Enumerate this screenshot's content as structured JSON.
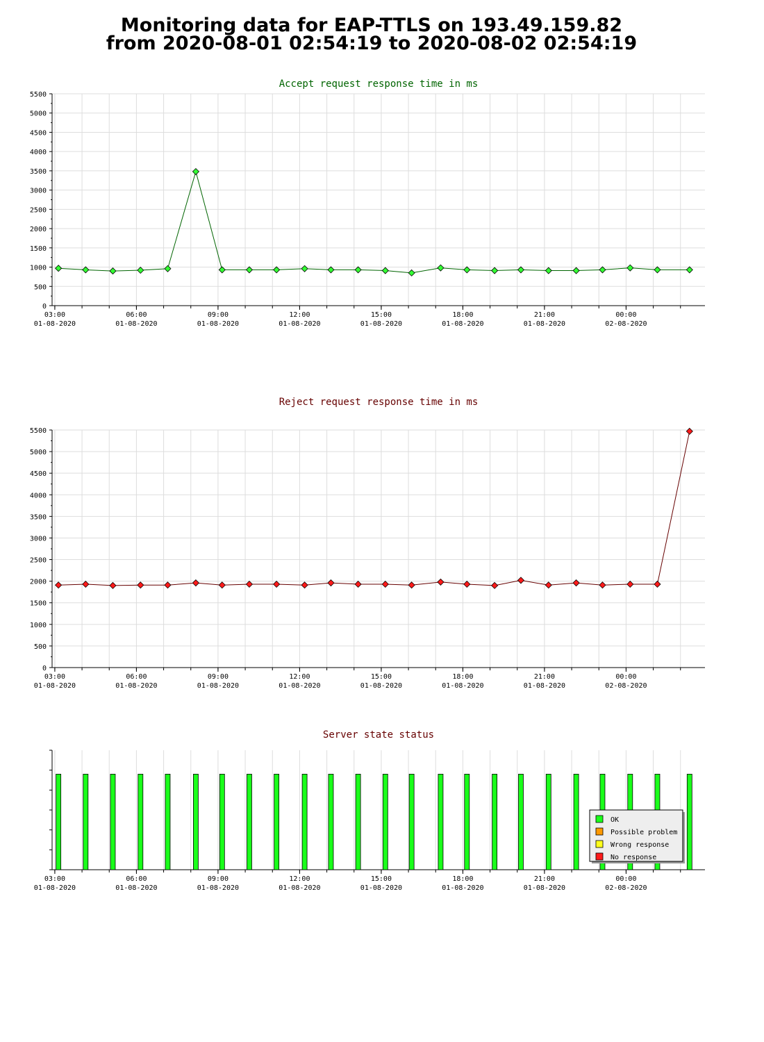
{
  "page": {
    "title_line1": "Monitoring data for EAP-TTLS on 193.49.159.82",
    "title_line2": "from 2020-08-01 02:54:19 to 2020-08-02 02:54:19"
  },
  "chart_data": [
    {
      "type": "line",
      "title": "Accept request response time in ms",
      "title_color": "#006400",
      "line_color": "#006400",
      "marker_color": "#33ff33",
      "ylim": [
        0,
        5500
      ],
      "yticks": [
        0,
        500,
        1000,
        1500,
        2000,
        2500,
        3000,
        3500,
        4000,
        4500,
        5000,
        5500
      ],
      "x_start": "2020-08-01 02:54",
      "x_end": "2020-08-02 02:54",
      "x_ticks": [
        {
          "time": "03:00",
          "date": "01-08-2020"
        },
        {
          "time": "06:00",
          "date": "01-08-2020"
        },
        {
          "time": "09:00",
          "date": "01-08-2020"
        },
        {
          "time": "12:00",
          "date": "01-08-2020"
        },
        {
          "time": "15:00",
          "date": "01-08-2020"
        },
        {
          "time": "18:00",
          "date": "01-08-2020"
        },
        {
          "time": "21:00",
          "date": "01-08-2020"
        },
        {
          "time": "00:00",
          "date": "02-08-2020"
        }
      ],
      "grid": true,
      "x": [
        "03:08",
        "04:08",
        "05:08",
        "06:09",
        "07:09",
        "08:11",
        "09:09",
        "10:09",
        "11:09",
        "12:11",
        "13:09",
        "14:09",
        "15:09",
        "16:07",
        "17:11",
        "18:09",
        "19:10",
        "20:08",
        "21:09",
        "22:10",
        "23:08",
        "00:09",
        "01:09",
        "02:20"
      ],
      "values": [
        970,
        930,
        900,
        920,
        960,
        3480,
        930,
        930,
        930,
        960,
        930,
        930,
        910,
        850,
        980,
        930,
        910,
        930,
        910,
        910,
        930,
        980,
        930,
        930
      ]
    },
    {
      "type": "line",
      "title": "Reject request response time in ms",
      "title_color": "#660000",
      "line_color": "#660000",
      "marker_color": "#ff1a1a",
      "ylim": [
        0,
        5500
      ],
      "yticks": [
        0,
        500,
        1000,
        1500,
        2000,
        2500,
        3000,
        3500,
        4000,
        4500,
        5000,
        5500
      ],
      "x_start": "2020-08-01 02:54",
      "x_end": "2020-08-02 02:54",
      "x_ticks": [
        {
          "time": "03:00",
          "date": "01-08-2020"
        },
        {
          "time": "06:00",
          "date": "01-08-2020"
        },
        {
          "time": "09:00",
          "date": "01-08-2020"
        },
        {
          "time": "12:00",
          "date": "01-08-2020"
        },
        {
          "time": "15:00",
          "date": "01-08-2020"
        },
        {
          "time": "18:00",
          "date": "01-08-2020"
        },
        {
          "time": "21:00",
          "date": "01-08-2020"
        },
        {
          "time": "00:00",
          "date": "02-08-2020"
        }
      ],
      "grid": true,
      "x": [
        "03:08",
        "04:08",
        "05:08",
        "06:09",
        "07:09",
        "08:11",
        "09:09",
        "10:09",
        "11:09",
        "12:11",
        "13:09",
        "14:09",
        "15:09",
        "16:07",
        "17:11",
        "18:09",
        "19:10",
        "20:08",
        "21:09",
        "22:10",
        "23:08",
        "00:09",
        "01:09",
        "02:20"
      ],
      "values": [
        1910,
        1930,
        1900,
        1910,
        1910,
        1960,
        1910,
        1930,
        1930,
        1910,
        1960,
        1930,
        1930,
        1910,
        1980,
        1930,
        1900,
        2020,
        1910,
        1960,
        1910,
        1930,
        1930,
        5470
      ]
    },
    {
      "type": "bar",
      "title": "Server state status",
      "title_color": "#660000",
      "x_start": "2020-08-01 02:54",
      "x_end": "2020-08-02 02:54",
      "x_ticks": [
        {
          "time": "03:00",
          "date": "01-08-2020"
        },
        {
          "time": "06:00",
          "date": "01-08-2020"
        },
        {
          "time": "09:00",
          "date": "01-08-2020"
        },
        {
          "time": "12:00",
          "date": "01-08-2020"
        },
        {
          "time": "15:00",
          "date": "01-08-2020"
        },
        {
          "time": "18:00",
          "date": "01-08-2020"
        },
        {
          "time": "21:00",
          "date": "01-08-2020"
        },
        {
          "time": "00:00",
          "date": "02-08-2020"
        }
      ],
      "x": [
        "03:08",
        "04:08",
        "05:08",
        "06:09",
        "07:09",
        "08:11",
        "09:09",
        "10:09",
        "11:09",
        "12:11",
        "13:09",
        "14:09",
        "15:09",
        "16:07",
        "17:11",
        "18:09",
        "19:10",
        "20:08",
        "21:09",
        "22:10",
        "23:08",
        "00:09",
        "01:09",
        "02:20"
      ],
      "status": [
        "OK",
        "OK",
        "OK",
        "OK",
        "OK",
        "OK",
        "OK",
        "OK",
        "OK",
        "OK",
        "OK",
        "OK",
        "OK",
        "OK",
        "OK",
        "OK",
        "OK",
        "OK",
        "OK",
        "OK",
        "OK",
        "OK",
        "OK",
        "OK"
      ],
      "legend": [
        {
          "label": "OK",
          "color": "#1aff1a"
        },
        {
          "label": "Possible problem",
          "color": "#ff9900"
        },
        {
          "label": "Wrong response",
          "color": "#ffff1a"
        },
        {
          "label": "No response",
          "color": "#ff1a1a"
        }
      ],
      "legend_position": "bottom-right"
    }
  ]
}
